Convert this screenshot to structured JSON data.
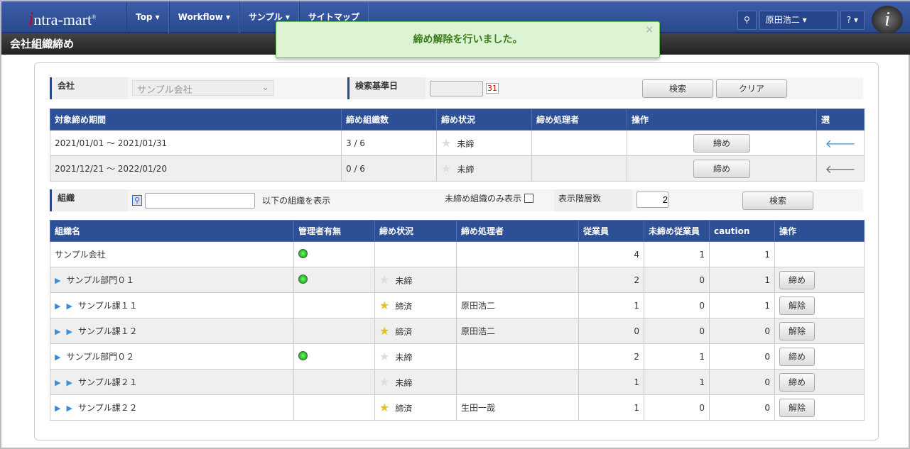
{
  "header": {
    "logo": "intra-mart",
    "nav": [
      "Top ▾",
      "Workflow ▾",
      "サンプル ▾",
      "サイトマップ"
    ],
    "user": "原田浩二 ▾",
    "help": "? ▾",
    "avatar": "i"
  },
  "page_title": "会社組織締め",
  "toast": {
    "message": "締め解除を行いました。",
    "close": "×"
  },
  "filter1": {
    "company_label": "会社",
    "company_value": "サンプル会社",
    "date_label": "検索基準日",
    "date_value": "",
    "search": "検索",
    "clear": "クリア"
  },
  "periods": {
    "headers": [
      "対象締め期間",
      "締め組織数",
      "締め状況",
      "締め処理者",
      "操作",
      "選"
    ],
    "rows": [
      {
        "period": "2021/01/01 ～ 2021/01/31",
        "count": "3 / 6",
        "status": "未締",
        "user": "",
        "action": "締め",
        "selected": true
      },
      {
        "period": "2021/12/21 ～ 2022/01/20",
        "count": "0 / 6",
        "status": "未締",
        "user": "",
        "action": "締め",
        "selected": false
      }
    ]
  },
  "filter2": {
    "org_label": "組織",
    "org_value": "",
    "org_suffix": "以下の組織を表示",
    "unclosed_only": "未締め組織のみ表示",
    "unclosed_checked": false,
    "depth_label": "表示階層数",
    "depth_value": "2",
    "search": "検索"
  },
  "orgs": {
    "headers": [
      "組織名",
      "管理者有無",
      "締め状況",
      "締め処理者",
      "従業員",
      "未締め従業員",
      "caution",
      "操作"
    ],
    "rows": [
      {
        "name": "サンプル会社",
        "level": 0,
        "manager": true,
        "status": "",
        "closed": null,
        "user": "",
        "emp": "4",
        "unclosed": "1",
        "caution": "1",
        "action": ""
      },
      {
        "name": "サンプル部門０１",
        "level": 1,
        "manager": true,
        "status": "未締",
        "closed": false,
        "user": "",
        "emp": "2",
        "unclosed": "0",
        "caution": "1",
        "action": "締め"
      },
      {
        "name": "サンプル課１１",
        "level": 2,
        "manager": false,
        "status": "締済",
        "closed": true,
        "user": "原田浩二",
        "emp": "1",
        "unclosed": "0",
        "caution": "1",
        "action": "解除"
      },
      {
        "name": "サンプル課１２",
        "level": 2,
        "manager": false,
        "status": "締済",
        "closed": true,
        "user": "原田浩二",
        "emp": "0",
        "unclosed": "0",
        "caution": "0",
        "action": "解除"
      },
      {
        "name": "サンプル部門０２",
        "level": 1,
        "manager": true,
        "status": "未締",
        "closed": false,
        "user": "",
        "emp": "2",
        "unclosed": "1",
        "caution": "0",
        "action": "締め"
      },
      {
        "name": "サンプル課２１",
        "level": 2,
        "manager": false,
        "status": "未締",
        "closed": false,
        "user": "",
        "emp": "1",
        "unclosed": "1",
        "caution": "0",
        "action": "締め"
      },
      {
        "name": "サンプル課２２",
        "level": 2,
        "manager": false,
        "status": "締済",
        "closed": true,
        "user": "生田一哉",
        "emp": "1",
        "unclosed": "0",
        "caution": "0",
        "action": "解除"
      }
    ]
  }
}
